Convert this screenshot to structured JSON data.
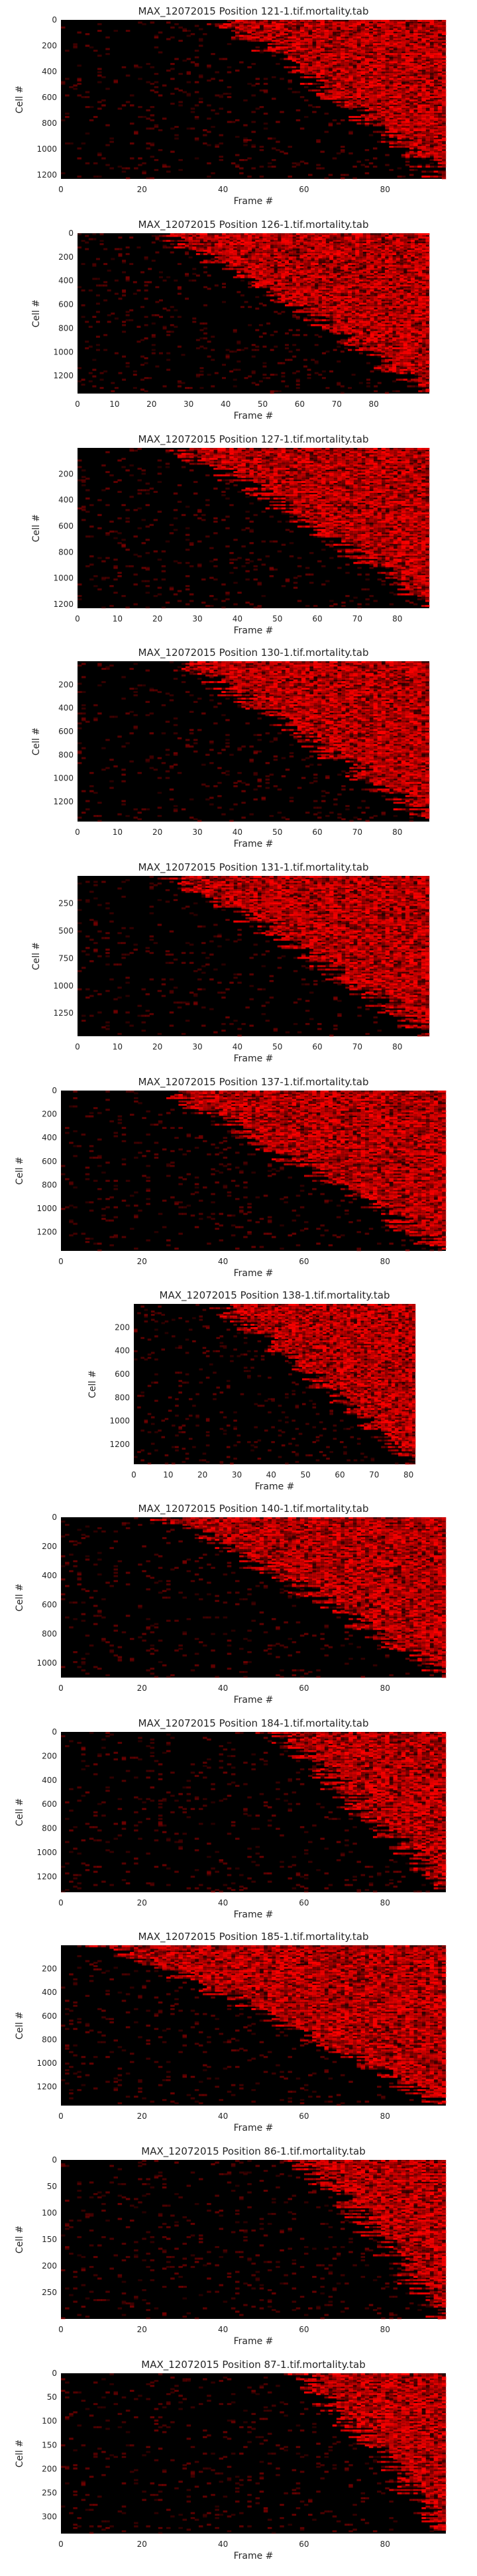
{
  "colors": {
    "background": "#000000",
    "signal": "#ff0000",
    "text": "#262626"
  },
  "chart_data": [
    {
      "type": "heatmap",
      "title": "MAX_12072015 Position 121-1.tif.mortality.tab",
      "xlabel": "Frame #",
      "ylabel": "Cell #",
      "xlim": [
        0,
        95
      ],
      "ylim": [
        1230,
        0
      ],
      "xticks": [
        0,
        20,
        40,
        60,
        80
      ],
      "yticks": [
        0,
        200,
        400,
        600,
        800,
        1000,
        1200
      ],
      "onset_frame_range": [
        38,
        95
      ],
      "colormap": [
        "#000000",
        "#ff0000"
      ]
    },
    {
      "type": "heatmap",
      "title": "MAX_12072015 Position 126-1.tif.mortality.tab",
      "xlabel": "Frame #",
      "ylabel": "Cell #",
      "xlim": [
        0,
        95
      ],
      "ylim": [
        1350,
        0
      ],
      "xticks": [
        0,
        10,
        20,
        30,
        40,
        50,
        60,
        70,
        80
      ],
      "yticks": [
        0,
        200,
        400,
        600,
        800,
        1000,
        1200
      ],
      "onset_frame_range": [
        22,
        95
      ],
      "colormap": [
        "#000000",
        "#ff0000"
      ]
    },
    {
      "type": "heatmap",
      "title": "MAX_12072015 Position 127-1.tif.mortality.tab",
      "xlabel": "Frame #",
      "ylabel": "Cell #",
      "xlim": [
        0,
        88
      ],
      "ylim": [
        1230,
        0
      ],
      "xticks": [
        0,
        10,
        20,
        30,
        40,
        50,
        60,
        70,
        80
      ],
      "yticks": [
        200,
        400,
        600,
        800,
        1000,
        1200
      ],
      "onset_frame_range": [
        25,
        88
      ],
      "colormap": [
        "#000000",
        "#ff0000"
      ]
    },
    {
      "type": "heatmap",
      "title": "MAX_12072015 Position 130-1.tif.mortality.tab",
      "xlabel": "Frame #",
      "ylabel": "Cell #",
      "xlim": [
        0,
        88
      ],
      "ylim": [
        1370,
        0
      ],
      "xticks": [
        0,
        10,
        20,
        30,
        40,
        50,
        60,
        70,
        80
      ],
      "yticks": [
        200,
        400,
        600,
        800,
        1000,
        1200
      ],
      "onset_frame_range": [
        24,
        88
      ],
      "colormap": [
        "#000000",
        "#ff0000"
      ]
    },
    {
      "type": "heatmap",
      "title": "MAX_12072015 Position 131-1.tif.mortality.tab",
      "xlabel": "Frame #",
      "ylabel": "Cell #",
      "xlim": [
        0,
        88
      ],
      "ylim": [
        1460,
        0
      ],
      "xticks": [
        0,
        10,
        20,
        30,
        40,
        50,
        60,
        70,
        80
      ],
      "yticks": [
        250,
        500,
        750,
        1000,
        1250
      ],
      "onset_frame_range": [
        22,
        88
      ],
      "colormap": [
        "#000000",
        "#ff0000"
      ]
    },
    {
      "type": "heatmap",
      "title": "MAX_12072015 Position 137-1.tif.mortality.tab",
      "xlabel": "Frame #",
      "ylabel": "Cell #",
      "xlim": [
        0,
        95
      ],
      "ylim": [
        1360,
        0
      ],
      "xticks": [
        0,
        20,
        40,
        60,
        80
      ],
      "yticks": [
        0,
        200,
        400,
        600,
        800,
        1000,
        1200
      ],
      "onset_frame_range": [
        24,
        95
      ],
      "colormap": [
        "#000000",
        "#ff0000"
      ]
    },
    {
      "type": "heatmap",
      "title": "MAX_12072015 Position 138-1.tif.mortality.tab",
      "xlabel": "Frame #",
      "ylabel": "Cell #",
      "xlim": [
        0,
        82
      ],
      "ylim": [
        1370,
        0
      ],
      "xticks": [
        0,
        10,
        20,
        30,
        40,
        50,
        60,
        70,
        80
      ],
      "yticks": [
        200,
        400,
        600,
        800,
        1000,
        1200
      ],
      "onset_frame_range": [
        23,
        82
      ],
      "colormap": [
        "#000000",
        "#ff0000"
      ]
    },
    {
      "type": "heatmap",
      "title": "MAX_12072015 Position 140-1.tif.mortality.tab",
      "xlabel": "Frame #",
      "ylabel": "Cell #",
      "xlim": [
        0,
        95
      ],
      "ylim": [
        1100,
        0
      ],
      "xticks": [
        0,
        20,
        40,
        60,
        80
      ],
      "yticks": [
        0,
        200,
        400,
        600,
        800,
        1000
      ],
      "onset_frame_range": [
        25,
        95
      ],
      "colormap": [
        "#000000",
        "#ff0000"
      ]
    },
    {
      "type": "heatmap",
      "title": "MAX_12072015 Position 184-1.tif.mortality.tab",
      "xlabel": "Frame #",
      "ylabel": "Cell #",
      "xlim": [
        0,
        95
      ],
      "ylim": [
        1330,
        0
      ],
      "xticks": [
        0,
        20,
        40,
        60,
        80
      ],
      "yticks": [
        0,
        200,
        400,
        600,
        800,
        1000,
        1200
      ],
      "onset_frame_range": [
        52,
        95
      ],
      "colormap": [
        "#000000",
        "#ff0000"
      ]
    },
    {
      "type": "heatmap",
      "title": "MAX_12072015 Position 185-1.tif.mortality.tab",
      "xlabel": "Frame #",
      "ylabel": "Cell #",
      "xlim": [
        0,
        95
      ],
      "ylim": [
        1360,
        0
      ],
      "xticks": [
        0,
        20,
        40,
        60,
        80
      ],
      "yticks": [
        200,
        400,
        600,
        800,
        1000,
        1200
      ],
      "onset_frame_range": [
        10,
        95
      ],
      "colormap": [
        "#000000",
        "#ff0000"
      ]
    },
    {
      "type": "heatmap",
      "title": "MAX_12072015 Position 86-1.tif.mortality.tab",
      "xlabel": "Frame #",
      "ylabel": "Cell #",
      "xlim": [
        0,
        95
      ],
      "ylim": [
        300,
        0
      ],
      "xticks": [
        0,
        20,
        40,
        60,
        80
      ],
      "yticks": [
        0,
        50,
        100,
        150,
        200,
        250
      ],
      "onset_frame_range": [
        58,
        95
      ],
      "colormap": [
        "#000000",
        "#ff0000"
      ]
    },
    {
      "type": "heatmap",
      "title": "MAX_12072015 Position 87-1.tif.mortality.tab",
      "xlabel": "Frame #",
      "ylabel": "Cell #",
      "xlim": [
        0,
        95
      ],
      "ylim": [
        335,
        0
      ],
      "xticks": [
        0,
        20,
        40,
        60,
        80
      ],
      "yticks": [
        0,
        50,
        100,
        150,
        200,
        250,
        300
      ],
      "onset_frame_range": [
        58,
        95
      ],
      "colormap": [
        "#000000",
        "#ff0000"
      ]
    }
  ]
}
